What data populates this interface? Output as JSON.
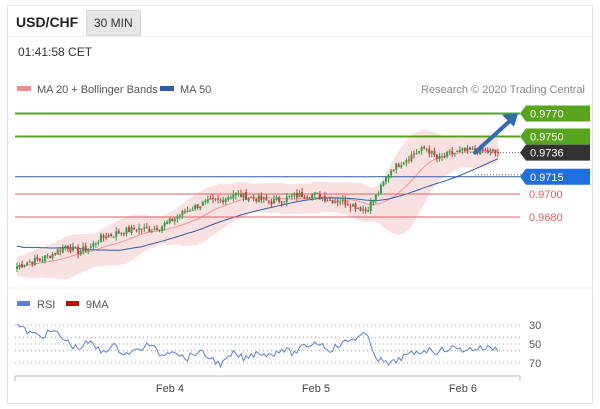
{
  "header": {
    "symbol": "USD/CHF",
    "timeframe": "30 MIN",
    "time": "01:41:58 CET"
  },
  "colors": {
    "accent_green": "#56a51c",
    "ma50_blue": "#2a5db0",
    "resistance_red": "#e06060",
    "bollinger_fill": "#f6c9c9",
    "rsi_blue": "#5b7fd6",
    "candle_green": "#2ea043",
    "candle_red": "#d9363e",
    "arrow_blue": "#2e6db4"
  },
  "chart_data": [
    {
      "type": "candlestick",
      "title": "USD/CHF",
      "legend": [
        {
          "name": "MA 20 + Bollinger Bands",
          "color": "#f28b8b"
        },
        {
          "name": "MA 50",
          "color": "#2a5db0"
        }
      ],
      "copyright": "Research © 2020 Trading Central",
      "x_tick_labels": [
        "Feb 4",
        "Feb 5",
        "Feb 6"
      ],
      "levels": [
        {
          "value": 0.977,
          "label": "0.9770",
          "style": "resistance",
          "color": "#56a51c"
        },
        {
          "value": 0.975,
          "label": "0.9750",
          "style": "resistance",
          "color": "#56a51c"
        },
        {
          "value": 0.9736,
          "label": "0.9736",
          "style": "last_price",
          "color": "#333333"
        },
        {
          "value": 0.9715,
          "label": "0.9715",
          "style": "pivot",
          "color": "#2a5db0"
        },
        {
          "value": 0.97,
          "label": "0.9700",
          "style": "support",
          "color": "#e06060"
        },
        {
          "value": 0.968,
          "label": "0.9680",
          "style": "support",
          "color": "#e06060"
        }
      ],
      "ylim": [
        0.963,
        0.978
      ],
      "close_path": [
        0.9637,
        0.9641,
        0.9643,
        0.9648,
        0.9655,
        0.965,
        0.9653,
        0.9662,
        0.9665,
        0.9668,
        0.967,
        0.9669,
        0.9672,
        0.9678,
        0.9685,
        0.969,
        0.9693,
        0.9695,
        0.97,
        0.9698,
        0.9696,
        0.9693,
        0.9695,
        0.9698,
        0.97,
        0.9699,
        0.9695,
        0.9694,
        0.969,
        0.9686,
        0.97,
        0.972,
        0.9728,
        0.9735,
        0.974,
        0.973,
        0.9735,
        0.9737,
        0.9738,
        0.9737,
        0.9736
      ]
    },
    {
      "type": "line",
      "legend": [
        {
          "name": "RSI",
          "color": "#5b7fd6"
        },
        {
          "name": "9MA",
          "color": "#d00000"
        }
      ],
      "y_tick_labels": [
        "70",
        "50",
        "30"
      ],
      "guides": [
        70,
        57,
        50,
        43,
        30
      ],
      "ylim": [
        20,
        80
      ],
      "rsi_path": [
        30,
        38,
        42,
        36,
        46,
        55,
        48,
        58,
        52,
        60,
        57,
        50,
        62,
        55,
        66,
        58,
        64,
        72,
        60,
        66,
        58,
        62,
        55,
        60,
        52,
        48,
        56,
        50,
        44,
        40,
        66,
        72,
        64,
        60,
        56,
        58,
        54,
        56,
        55,
        54,
        55
      ]
    }
  ]
}
